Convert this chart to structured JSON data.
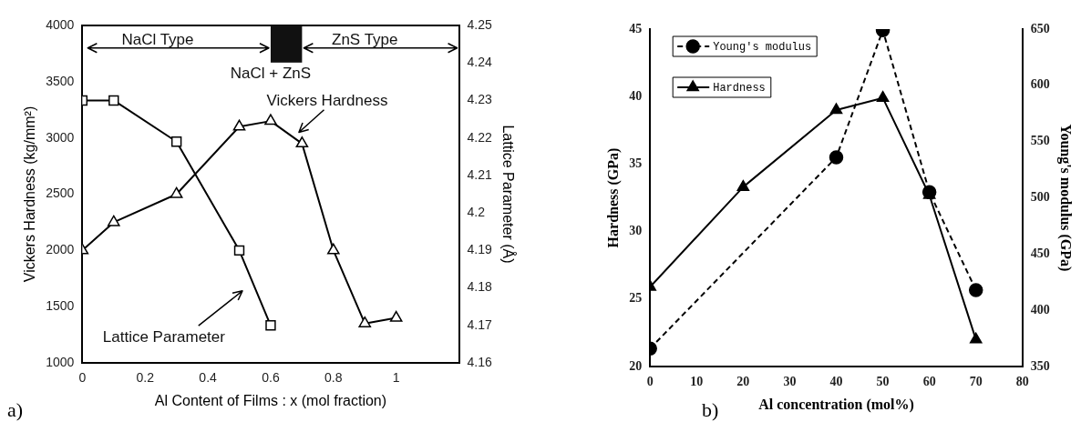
{
  "chart_data": [
    {
      "type": "line",
      "xlabel": "Al Content of Films : x (mol fraction)",
      "ylabel": "Vickers Hardness (kg/mm²)",
      "y2label": "Lattice Parameter (Å)",
      "xlim": [
        0,
        1.2
      ],
      "xticks": [
        0,
        0.2,
        0.4,
        0.6,
        0.8,
        1
      ],
      "ylim": [
        1000,
        4000
      ],
      "yticks": [
        1000,
        1500,
        2000,
        2500,
        3000,
        3500,
        4000
      ],
      "y2lim": [
        4.16,
        4.25
      ],
      "y2ticks": [
        4.16,
        4.17,
        4.18,
        4.19,
        4.2,
        4.21,
        4.22,
        4.23,
        4.24,
        4.25
      ],
      "series": [
        {
          "name": "Vickers Hardness",
          "color": "#000000",
          "marker": "triangle",
          "x": [
            0,
            0.1,
            0.3,
            0.5,
            0.6,
            0.7,
            0.8,
            0.9,
            1
          ],
          "values": [
            2000,
            2250,
            2500,
            3100,
            3150,
            2950,
            2000,
            1350,
            1400
          ]
        },
        {
          "name": "Lattice Parameter",
          "color": "#000000",
          "marker": "square",
          "axis": "y2",
          "x": [
            0,
            0.1,
            0.3,
            0.5,
            0.6
          ],
          "values": [
            4.23,
            4.23,
            4.219,
            4.19,
            4.17
          ]
        }
      ],
      "annotations": [
        "NaCl Type",
        "ZnS Type",
        "NaCl + ZnS",
        "a)"
      ]
    },
    {
      "type": "line",
      "xlabel": "Al concentration (mol%)",
      "ylabel": "Hardness (GPa)",
      "y2label": "Young's modulus (GPa)",
      "xlim": [
        0,
        80
      ],
      "xticks": [
        0,
        10,
        20,
        30,
        40,
        50,
        60,
        70,
        80
      ],
      "ylim": [
        20,
        45
      ],
      "yticks": [
        20,
        25,
        30,
        35,
        40,
        45
      ],
      "y2lim": [
        350,
        650
      ],
      "y2ticks": [
        350,
        400,
        450,
        500,
        550,
        600,
        650
      ],
      "series": [
        {
          "name": "Young's modulus",
          "color": "#000000",
          "marker": "circle",
          "line_style": "dashed",
          "axis": "y2",
          "x": [
            0,
            40,
            50,
            60,
            70
          ],
          "values": [
            366,
            536,
            649,
            505,
            418
          ]
        },
        {
          "name": "Hardness",
          "color": "#000000",
          "marker": "triangle",
          "line_style": "solid",
          "x": [
            0,
            20,
            40,
            50,
            60,
            70
          ],
          "values": [
            25.9,
            33.3,
            39,
            39.9,
            32.7,
            22
          ]
        }
      ],
      "annotations": [
        "b)"
      ],
      "legend": "top left"
    }
  ]
}
